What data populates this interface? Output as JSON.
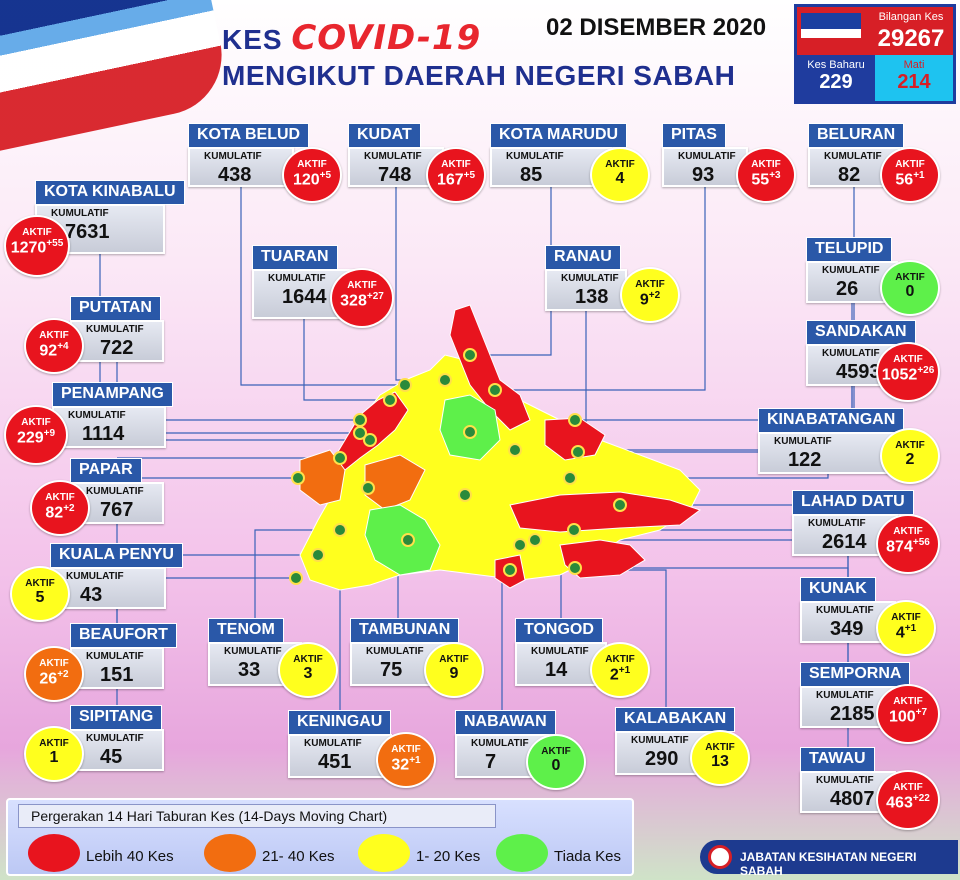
{
  "header": {
    "title_prefix": "KES",
    "title_covid": "COVID-19",
    "title_line2": "MENGIKUT DAERAH NEGERI SABAH",
    "date": "02 DISEMBER 2020"
  },
  "summary": {
    "total_label": "Bilangan Kes",
    "total_value": "29267",
    "new_label": "Kes Baharu",
    "new_value": "229",
    "death_label": "Mati",
    "death_value": "214"
  },
  "labels": {
    "kumulatif": "KUMULATIF",
    "aktif": "AKTIF"
  },
  "colors": {
    "red": "#e8141e",
    "orange": "#f26d10",
    "yellow": "#ffff1e",
    "green": "#5ef04a",
    "header_blue": "#2a58a8"
  },
  "districts": [
    {
      "name": "KOTA BELUD",
      "kumulatif": "438",
      "aktif": "120",
      "plus": "+5",
      "level": "red"
    },
    {
      "name": "KUDAT",
      "kumulatif": "748",
      "aktif": "167",
      "plus": "+5",
      "level": "red"
    },
    {
      "name": "KOTA MARUDU",
      "kumulatif": "85",
      "aktif": "4",
      "plus": "",
      "level": "yellow"
    },
    {
      "name": "PITAS",
      "kumulatif": "93",
      "aktif": "55",
      "plus": "+3",
      "level": "red"
    },
    {
      "name": "BELURAN",
      "kumulatif": "82",
      "aktif": "56",
      "plus": "+1",
      "level": "red"
    },
    {
      "name": "KOTA KINABALU",
      "kumulatif": "7631",
      "aktif": "1270",
      "plus": "+55",
      "level": "red"
    },
    {
      "name": "TUARAN",
      "kumulatif": "1644",
      "aktif": "328",
      "plus": "+27",
      "level": "red"
    },
    {
      "name": "RANAU",
      "kumulatif": "138",
      "aktif": "9",
      "plus": "+2",
      "level": "yellow"
    },
    {
      "name": "TELUPID",
      "kumulatif": "26",
      "aktif": "0",
      "plus": "",
      "level": "green"
    },
    {
      "name": "PUTATAN",
      "kumulatif": "722",
      "aktif": "92",
      "plus": "+4",
      "level": "red"
    },
    {
      "name": "SANDAKAN",
      "kumulatif": "4593",
      "aktif": "1052",
      "plus": "+26",
      "level": "red"
    },
    {
      "name": "PENAMPANG",
      "kumulatif": "1114",
      "aktif": "229",
      "plus": "+9",
      "level": "red"
    },
    {
      "name": "KINABATANGAN",
      "kumulatif": "122",
      "aktif": "2",
      "plus": "",
      "level": "yellow"
    },
    {
      "name": "PAPAR",
      "kumulatif": "767",
      "aktif": "82",
      "plus": "+2",
      "level": "red"
    },
    {
      "name": "LAHAD DATU",
      "kumulatif": "2614",
      "aktif": "874",
      "plus": "+56",
      "level": "red"
    },
    {
      "name": "KUALA PENYU",
      "kumulatif": "43",
      "aktif": "5",
      "plus": "",
      "level": "yellow"
    },
    {
      "name": "KUNAK",
      "kumulatif": "349",
      "aktif": "4",
      "plus": "+1",
      "level": "yellow"
    },
    {
      "name": "BEAUFORT",
      "kumulatif": "151",
      "aktif": "26",
      "plus": "+2",
      "level": "orange"
    },
    {
      "name": "TENOM",
      "kumulatif": "33",
      "aktif": "3",
      "plus": "",
      "level": "yellow"
    },
    {
      "name": "TAMBUNAN",
      "kumulatif": "75",
      "aktif": "9",
      "plus": "",
      "level": "yellow"
    },
    {
      "name": "TONGOD",
      "kumulatif": "14",
      "aktif": "2",
      "plus": "+1",
      "level": "yellow"
    },
    {
      "name": "SEMPORNA",
      "kumulatif": "2185",
      "aktif": "100",
      "plus": "+7",
      "level": "red"
    },
    {
      "name": "SIPITANG",
      "kumulatif": "45",
      "aktif": "1",
      "plus": "",
      "level": "yellow"
    },
    {
      "name": "KENINGAU",
      "kumulatif": "451",
      "aktif": "32",
      "plus": "+1",
      "level": "orange"
    },
    {
      "name": "NABAWAN",
      "kumulatif": "7",
      "aktif": "0",
      "plus": "",
      "level": "green"
    },
    {
      "name": "KALABAKAN",
      "kumulatif": "290",
      "aktif": "13",
      "plus": "",
      "level": "yellow"
    },
    {
      "name": "TAWAU",
      "kumulatif": "4807",
      "aktif": "463",
      "plus": "+22",
      "level": "red"
    }
  ],
  "legend": {
    "title": "Pergerakan 14 Hari Taburan Kes (14-Days Moving Chart)",
    "items": [
      {
        "label": "Lebih 40 Kes",
        "color": "red"
      },
      {
        "label": "21- 40 Kes",
        "color": "orange"
      },
      {
        "label": "1- 20 Kes",
        "color": "yellow"
      },
      {
        "label": "Tiada Kes",
        "color": "green"
      }
    ]
  },
  "footer": {
    "org": "JABATAN KESIHATAN NEGERI SABAH"
  }
}
